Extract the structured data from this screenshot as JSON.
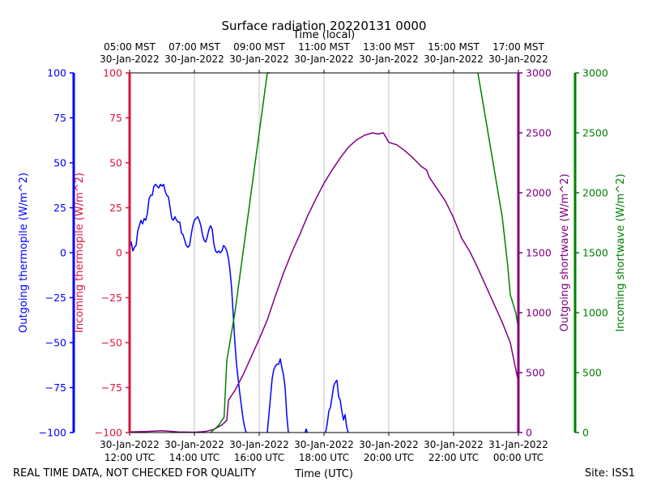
{
  "chart_data": {
    "type": "line",
    "title": "Surface radiation 20220131 0000",
    "xlabel": "Time (UTC)",
    "x2label": "Time (local)",
    "xlim": [
      "2022-01-30T12:00",
      "2022-01-31T00:00"
    ],
    "x_ticks": [
      {
        "t": "2022-01-30T12:00",
        "utc": [
          "30-Jan-2022",
          "12:00 UTC"
        ],
        "local": [
          "05:00 MST",
          "30-Jan-2022"
        ]
      },
      {
        "t": "2022-01-30T14:00",
        "utc": [
          "30-Jan-2022",
          "14:00 UTC"
        ],
        "local": [
          "07:00 MST",
          "30-Jan-2022"
        ]
      },
      {
        "t": "2022-01-30T16:00",
        "utc": [
          "30-Jan-2022",
          "16:00 UTC"
        ],
        "local": [
          "09:00 MST",
          "30-Jan-2022"
        ]
      },
      {
        "t": "2022-01-30T18:00",
        "utc": [
          "30-Jan-2022",
          "18:00 UTC"
        ],
        "local": [
          "11:00 MST",
          "30-Jan-2022"
        ]
      },
      {
        "t": "2022-01-30T20:00",
        "utc": [
          "30-Jan-2022",
          "20:00 UTC"
        ],
        "local": [
          "13:00 MST",
          "30-Jan-2022"
        ]
      },
      {
        "t": "2022-01-30T22:00",
        "utc": [
          "30-Jan-2022",
          "22:00 UTC"
        ],
        "local": [
          "15:00 MST",
          "30-Jan-2022"
        ]
      },
      {
        "t": "2022-01-31T00:00",
        "utc": [
          "31-Jan-2022",
          "00:00 UTC"
        ],
        "local": [
          "17:00 MST",
          "30-Jan-2022"
        ]
      }
    ],
    "grid": "vertical",
    "axes": [
      {
        "id": "out_thermo",
        "label": "Outgoing thermopile (W/m^2)",
        "color": "#0000ff",
        "ylim": [
          -100,
          100
        ],
        "ticks": [
          -100,
          -75,
          -50,
          -25,
          0,
          25,
          50,
          75,
          100
        ]
      },
      {
        "id": "in_thermo",
        "label": "Incoming thermopile (W/m^2)",
        "color": "#dc143c",
        "ylim": [
          -100,
          100
        ],
        "ticks": [
          -100,
          -75,
          -50,
          -25,
          0,
          25,
          50,
          75,
          100
        ]
      },
      {
        "id": "out_sw",
        "label": "Outgoing shortwave (W/m^2)",
        "color": "#800080",
        "ylim": [
          0,
          3000
        ],
        "ticks": [
          0,
          500,
          1000,
          1500,
          2000,
          2500,
          3000
        ]
      },
      {
        "id": "in_sw",
        "label": "Incoming shortwave (W/m^2)",
        "color": "#008000",
        "ylim": [
          0,
          3000
        ],
        "ticks": [
          0,
          500,
          1000,
          1500,
          2000,
          2500,
          3000
        ]
      }
    ],
    "series": [
      {
        "axis": "out_thermo",
        "color": "#0000ff",
        "segments": [
          [
            [
              "2022-01-30T12:00",
              2
            ],
            [
              "2022-01-30T12:03",
              6
            ],
            [
              "2022-01-30T12:06",
              1
            ],
            [
              "2022-01-30T12:09",
              3
            ],
            [
              "2022-01-30T12:12",
              4
            ],
            [
              "2022-01-30T12:15",
              12
            ],
            [
              "2022-01-30T12:18",
              15
            ],
            [
              "2022-01-30T12:21",
              18
            ],
            [
              "2022-01-30T12:24",
              16
            ],
            [
              "2022-01-30T12:27",
              19
            ],
            [
              "2022-01-30T12:30",
              18
            ],
            [
              "2022-01-30T12:33",
              22
            ],
            [
              "2022-01-30T12:36",
              30
            ],
            [
              "2022-01-30T12:39",
              32
            ],
            [
              "2022-01-30T12:42",
              32
            ],
            [
              "2022-01-30T12:45",
              37
            ],
            [
              "2022-01-30T12:48",
              38
            ],
            [
              "2022-01-30T12:51",
              37
            ],
            [
              "2022-01-30T12:54",
              36
            ],
            [
              "2022-01-30T12:57",
              38
            ],
            [
              "2022-01-30T13:00",
              37
            ],
            [
              "2022-01-30T13:03",
              38
            ],
            [
              "2022-01-30T13:06",
              34
            ],
            [
              "2022-01-30T13:09",
              32
            ],
            [
              "2022-01-30T13:12",
              31
            ],
            [
              "2022-01-30T13:15",
              25
            ],
            [
              "2022-01-30T13:18",
              19
            ],
            [
              "2022-01-30T13:21",
              18
            ],
            [
              "2022-01-30T13:24",
              20
            ],
            [
              "2022-01-30T13:27",
              18
            ],
            [
              "2022-01-30T13:30",
              17
            ],
            [
              "2022-01-30T13:33",
              17
            ],
            [
              "2022-01-30T13:36",
              11
            ],
            [
              "2022-01-30T13:39",
              10
            ],
            [
              "2022-01-30T13:42",
              7
            ],
            [
              "2022-01-30T13:45",
              4
            ],
            [
              "2022-01-30T13:48",
              3
            ],
            [
              "2022-01-30T13:51",
              4
            ],
            [
              "2022-01-30T13:54",
              10
            ],
            [
              "2022-01-30T13:57",
              15
            ],
            [
              "2022-01-30T14:00",
              18
            ],
            [
              "2022-01-30T14:03",
              19
            ],
            [
              "2022-01-30T14:06",
              20
            ],
            [
              "2022-01-30T14:09",
              18
            ],
            [
              "2022-01-30T14:12",
              15
            ],
            [
              "2022-01-30T14:15",
              10
            ],
            [
              "2022-01-30T14:18",
              7
            ],
            [
              "2022-01-30T14:21",
              6
            ],
            [
              "2022-01-30T14:24",
              9
            ],
            [
              "2022-01-30T14:27",
              13
            ],
            [
              "2022-01-30T14:30",
              15
            ],
            [
              "2022-01-30T14:33",
              13
            ],
            [
              "2022-01-30T14:36",
              5
            ],
            [
              "2022-01-30T14:39",
              1
            ],
            [
              "2022-01-30T14:42",
              0
            ],
            [
              "2022-01-30T14:45",
              1
            ],
            [
              "2022-01-30T14:48",
              0
            ],
            [
              "2022-01-30T14:51",
              1
            ],
            [
              "2022-01-30T14:54",
              4
            ],
            [
              "2022-01-30T14:57",
              3
            ],
            [
              "2022-01-30T15:00",
              1
            ],
            [
              "2022-01-30T15:03",
              -3
            ],
            [
              "2022-01-30T15:06",
              -10
            ],
            [
              "2022-01-30T15:09",
              -20
            ],
            [
              "2022-01-30T15:12",
              -35
            ],
            [
              "2022-01-30T15:15",
              -50
            ],
            [
              "2022-01-30T15:18",
              -62
            ],
            [
              "2022-01-30T15:21",
              -70
            ],
            [
              "2022-01-30T15:24",
              -78
            ],
            [
              "2022-01-30T15:27",
              -85
            ],
            [
              "2022-01-30T15:30",
              -92
            ],
            [
              "2022-01-30T15:33",
              -97
            ],
            [
              "2022-01-30T15:36",
              -100
            ]
          ],
          [
            [
              "2022-01-30T16:15",
              -100
            ],
            [
              "2022-01-30T16:18",
              -90
            ],
            [
              "2022-01-30T16:21",
              -80
            ],
            [
              "2022-01-30T16:24",
              -70
            ],
            [
              "2022-01-30T16:27",
              -65
            ],
            [
              "2022-01-30T16:30",
              -63
            ],
            [
              "2022-01-30T16:33",
              -62
            ],
            [
              "2022-01-30T16:36",
              -62
            ],
            [
              "2022-01-30T16:39",
              -59
            ],
            [
              "2022-01-30T16:42",
              -64
            ],
            [
              "2022-01-30T16:45",
              -68
            ],
            [
              "2022-01-30T16:48",
              -75
            ],
            [
              "2022-01-30T16:51",
              -90
            ],
            [
              "2022-01-30T16:54",
              -100
            ]
          ],
          [
            [
              "2022-01-30T17:25",
              -100
            ],
            [
              "2022-01-30T17:27",
              -98
            ],
            [
              "2022-01-30T17:29",
              -100
            ]
          ],
          [
            [
              "2022-01-30T18:03",
              -100
            ],
            [
              "2022-01-30T18:06",
              -95
            ],
            [
              "2022-01-30T18:09",
              -88
            ],
            [
              "2022-01-30T18:12",
              -86
            ],
            [
              "2022-01-30T18:15",
              -80
            ],
            [
              "2022-01-30T18:18",
              -74
            ],
            [
              "2022-01-30T18:21",
              -72
            ],
            [
              "2022-01-30T18:24",
              -71
            ],
            [
              "2022-01-30T18:27",
              -80
            ],
            [
              "2022-01-30T18:30",
              -82
            ],
            [
              "2022-01-30T18:33",
              -88
            ],
            [
              "2022-01-30T18:36",
              -93
            ],
            [
              "2022-01-30T18:39",
              -90
            ],
            [
              "2022-01-30T18:42",
              -97
            ],
            [
              "2022-01-30T18:45",
              -100
            ]
          ]
        ]
      },
      {
        "axis": "out_sw",
        "color": "#800080",
        "segments": [
          [
            [
              "2022-01-30T12:00",
              5
            ],
            [
              "2022-01-30T12:30",
              8
            ],
            [
              "2022-01-30T13:00",
              15
            ],
            [
              "2022-01-30T13:30",
              5
            ],
            [
              "2022-01-30T14:00",
              3
            ],
            [
              "2022-01-30T14:20",
              8
            ],
            [
              "2022-01-30T14:35",
              25
            ],
            [
              "2022-01-30T14:50",
              60
            ],
            [
              "2022-01-30T15:00",
              100
            ],
            [
              "2022-01-30T15:03",
              270
            ],
            [
              "2022-01-30T15:15",
              350
            ],
            [
              "2022-01-30T15:30",
              480
            ],
            [
              "2022-01-30T15:45",
              630
            ],
            [
              "2022-01-30T16:00",
              780
            ],
            [
              "2022-01-30T16:15",
              940
            ],
            [
              "2022-01-30T16:30",
              1140
            ],
            [
              "2022-01-30T16:45",
              1330
            ],
            [
              "2022-01-30T17:00",
              1500
            ],
            [
              "2022-01-30T17:15",
              1650
            ],
            [
              "2022-01-30T17:30",
              1810
            ],
            [
              "2022-01-30T17:45",
              1950
            ],
            [
              "2022-01-30T18:00",
              2080
            ],
            [
              "2022-01-30T18:15",
              2190
            ],
            [
              "2022-01-30T18:30",
              2290
            ],
            [
              "2022-01-30T18:45",
              2380
            ],
            [
              "2022-01-30T19:00",
              2440
            ],
            [
              "2022-01-30T19:15",
              2480
            ],
            [
              "2022-01-30T19:30",
              2500
            ],
            [
              "2022-01-30T19:40",
              2490
            ],
            [
              "2022-01-30T19:50",
              2500
            ],
            [
              "2022-01-30T20:00",
              2420
            ],
            [
              "2022-01-30T20:15",
              2400
            ],
            [
              "2022-01-30T20:30",
              2350
            ],
            [
              "2022-01-30T20:45",
              2290
            ],
            [
              "2022-01-30T21:00",
              2220
            ],
            [
              "2022-01-30T21:10",
              2190
            ],
            [
              "2022-01-30T21:15",
              2130
            ],
            [
              "2022-01-30T21:30",
              2030
            ],
            [
              "2022-01-30T21:45",
              1930
            ],
            [
              "2022-01-30T22:00",
              1790
            ],
            [
              "2022-01-30T22:15",
              1620
            ],
            [
              "2022-01-30T22:30",
              1510
            ],
            [
              "2022-01-30T22:45",
              1370
            ],
            [
              "2022-01-30T23:00",
              1220
            ],
            [
              "2022-01-30T23:15",
              1070
            ],
            [
              "2022-01-30T23:30",
              920
            ],
            [
              "2022-01-30T23:45",
              750
            ],
            [
              "2022-01-31T00:00",
              420
            ]
          ]
        ]
      },
      {
        "axis": "in_sw",
        "color": "#008000",
        "segments": [
          [
            [
              "2022-01-30T14:30",
              0
            ],
            [
              "2022-01-30T14:45",
              60
            ],
            [
              "2022-01-30T14:55",
              130
            ],
            [
              "2022-01-30T15:00",
              600
            ],
            [
              "2022-01-30T15:15",
              1000
            ],
            [
              "2022-01-30T15:30",
              1500
            ],
            [
              "2022-01-30T15:45",
              2000
            ],
            [
              "2022-01-30T16:00",
              2500
            ],
            [
              "2022-01-30T16:15",
              3000
            ],
            [
              "2022-01-30T16:20",
              3000
            ]
          ],
          [
            [
              "2022-01-30T22:45",
              3000
            ],
            [
              "2022-01-30T23:00",
              2600
            ],
            [
              "2022-01-30T23:15",
              2200
            ],
            [
              "2022-01-30T23:30",
              1800
            ],
            [
              "2022-01-30T23:40",
              1400
            ],
            [
              "2022-01-30T23:45",
              1150
            ],
            [
              "2022-01-30T23:55",
              1000
            ],
            [
              "2022-01-31T00:00",
              870
            ]
          ]
        ]
      }
    ]
  },
  "footer": {
    "left": "REAL TIME DATA, NOT CHECKED FOR QUALITY",
    "right": "Site: ISS1"
  }
}
